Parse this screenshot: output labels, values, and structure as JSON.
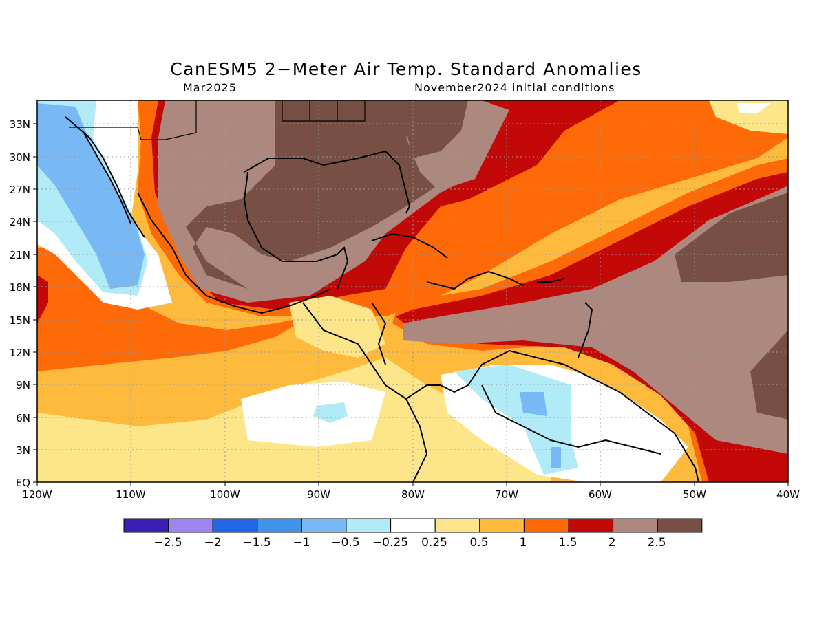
{
  "title": "CanESM5 2−Meter Air Temp. Standard Anomalies",
  "subtitle_left": "Mar2025",
  "subtitle_right": "November2024 initial conditions",
  "lat_labels": [
    "EQ",
    "3N",
    "6N",
    "9N",
    "12N",
    "15N",
    "18N",
    "21N",
    "24N",
    "27N",
    "30N",
    "33N"
  ],
  "lon_labels": [
    "120W",
    "110W",
    "100W",
    "90W",
    "80W",
    "70W",
    "60W",
    "50W",
    "40W"
  ],
  "colorbar": {
    "colors": [
      "#3b1fb4",
      "#9e86f2",
      "#2166e2",
      "#3f94ea",
      "#78b8f5",
      "#b1ebf8",
      "#ffffff",
      "#fde68a",
      "#fdba3c",
      "#fe6a07",
      "#c30808",
      "#ad887e",
      "#774f45"
    ],
    "labels": [
      "−2.5",
      "−2",
      "−1.5",
      "−1",
      "−0.5",
      "−0.25",
      "0.25",
      "0.5",
      "1",
      "1.5",
      "2",
      "2.5"
    ]
  }
}
